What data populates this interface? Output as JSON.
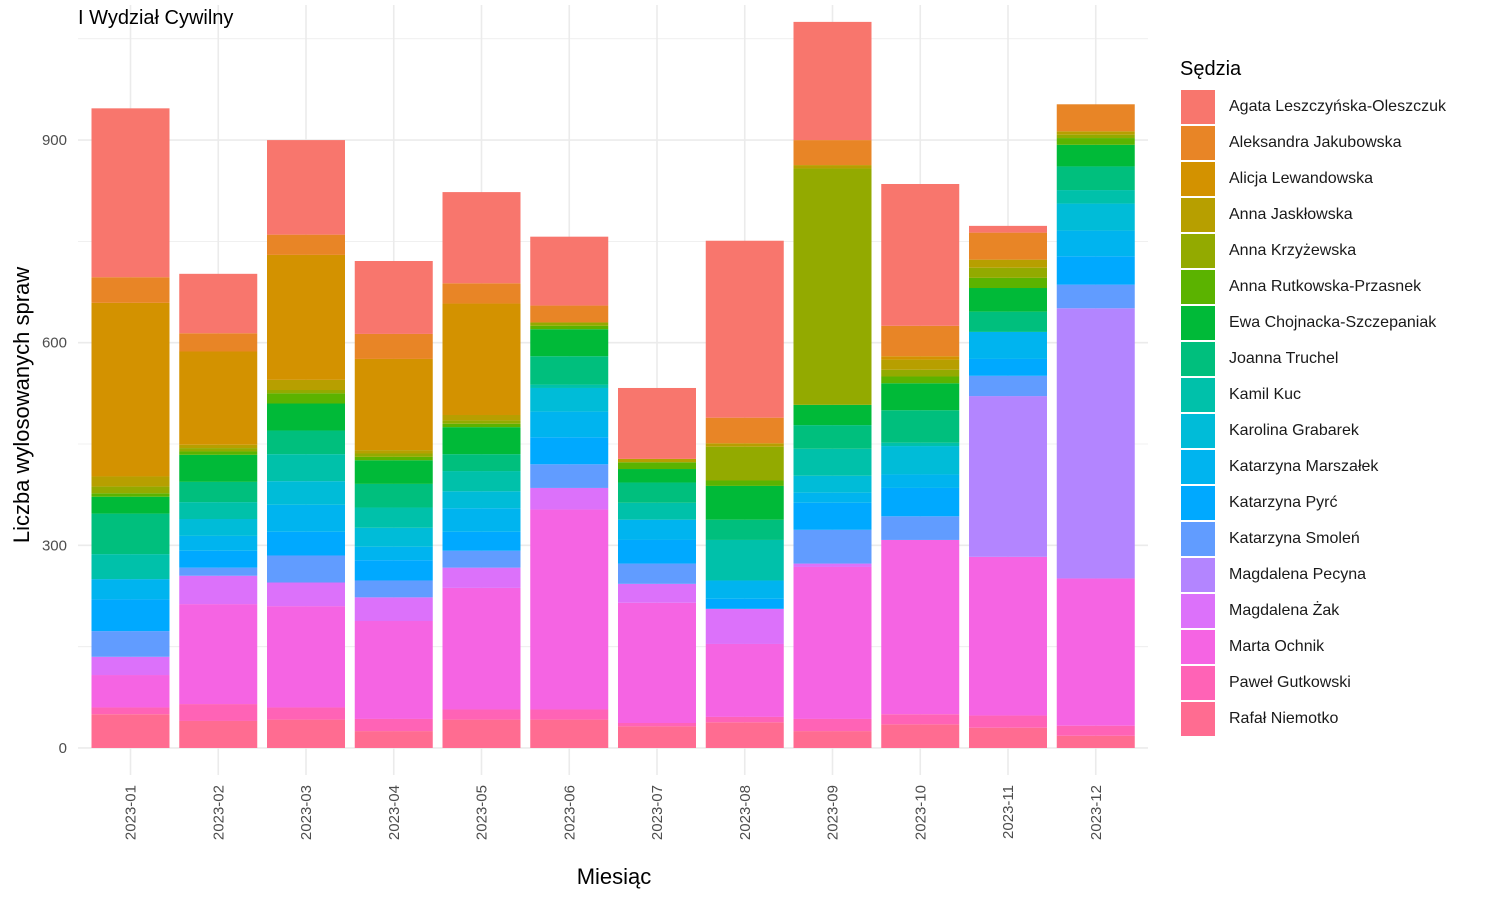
{
  "chart_data": {
    "type": "bar",
    "stacked": true,
    "title": "I Wydział Cywilny",
    "xlabel": "Miesiąc",
    "ylabel": "Liczba wylosowanych spraw",
    "legend_title": "Sędzia",
    "legend_position": "right",
    "grid": true,
    "ylim": [
      -40,
      1100
    ],
    "y_ticks": [
      0,
      300,
      600,
      900
    ],
    "categories": [
      "2023-01",
      "2023-02",
      "2023-03",
      "2023-04",
      "2023-05",
      "2023-06",
      "2023-07",
      "2023-08",
      "2023-09",
      "2023-10",
      "2023-11",
      "2023-12"
    ],
    "series": [
      {
        "name": "Rafał Niemotko",
        "color": "#FF6C91",
        "values": [
          50,
          40,
          42,
          25,
          42,
          42,
          32,
          38,
          25,
          35,
          30,
          18
        ]
      },
      {
        "name": "Paweł Gutkowski",
        "color": "#FF63B6",
        "values": [
          10,
          25,
          18,
          18,
          15,
          15,
          5,
          8,
          18,
          15,
          18,
          15
        ]
      },
      {
        "name": "Marta Ochnik",
        "color": "#F564E3",
        "values": [
          48,
          148,
          150,
          145,
          180,
          296,
          178,
          108,
          225,
          258,
          235,
          218
        ]
      },
      {
        "name": "Magdalena Żak",
        "color": "#DC71FA",
        "values": [
          27,
          42,
          35,
          35,
          30,
          32,
          28,
          52,
          5,
          0,
          0,
          0
        ]
      },
      {
        "name": "Magdalena Pecyna",
        "color": "#B385FF",
        "values": [
          0,
          0,
          0,
          0,
          0,
          0,
          0,
          0,
          0,
          0,
          238,
          400
        ]
      },
      {
        "name": "Katarzyna Smoleń",
        "color": "#619CFF",
        "values": [
          38,
          12,
          40,
          25,
          25,
          35,
          30,
          0,
          50,
          35,
          30,
          35
        ]
      },
      {
        "name": "Katarzyna Pyrć",
        "color": "#00A9FF",
        "values": [
          47,
          25,
          35,
          30,
          28,
          40,
          35,
          15,
          40,
          42,
          25,
          42
        ]
      },
      {
        "name": "Katarzyna Marszałek",
        "color": "#00B4EF",
        "values": [
          30,
          22,
          40,
          20,
          35,
          38,
          30,
          27,
          15,
          20,
          40,
          38
        ]
      },
      {
        "name": "Karolina Grabarek",
        "color": "#00BCD8",
        "values": [
          0,
          25,
          35,
          28,
          25,
          35,
          0,
          0,
          25,
          42,
          0,
          40
        ]
      },
      {
        "name": "Kamil Kuc",
        "color": "#00C1AA",
        "values": [
          37,
          25,
          40,
          30,
          30,
          5,
          25,
          60,
          40,
          5,
          0,
          20
        ]
      },
      {
        "name": "Joanna Truchel",
        "color": "#00BF7D",
        "values": [
          60,
          30,
          35,
          35,
          25,
          42,
          30,
          30,
          35,
          48,
          30,
          35
        ]
      },
      {
        "name": "Ewa Chojnacka-Szczepaniak",
        "color": "#00BA38",
        "values": [
          25,
          40,
          40,
          35,
          40,
          40,
          20,
          50,
          30,
          40,
          35,
          32
        ]
      },
      {
        "name": "Anna Rutkowska-Przasnek",
        "color": "#5BB300",
        "values": [
          5,
          5,
          15,
          5,
          5,
          5,
          10,
          8,
          0,
          10,
          15,
          10
        ]
      },
      {
        "name": "Anna Krzyżewska",
        "color": "#93AA00",
        "values": [
          10,
          5,
          5,
          5,
          5,
          5,
          0,
          50,
          350,
          10,
          15,
          5
        ]
      },
      {
        "name": "Anna Jaskłowska",
        "color": "#B79F00",
        "values": [
          15,
          5,
          15,
          5,
          8,
          0,
          5,
          5,
          5,
          15,
          12,
          5
        ]
      },
      {
        "name": "Alicja Lewandowska",
        "color": "#D39200",
        "values": [
          257,
          138,
          185,
          135,
          165,
          0,
          0,
          0,
          0,
          5,
          0,
          0
        ]
      },
      {
        "name": "Aleksandra Jakubowska",
        "color": "#E88526",
        "values": [
          38,
          27,
          30,
          37,
          30,
          25,
          0,
          38,
          37,
          45,
          40,
          40
        ]
      },
      {
        "name": "Agata Leszczyńska-Oleszczuk",
        "color": "#F8766D",
        "values": [
          250,
          88,
          140,
          108,
          135,
          102,
          105,
          262,
          175,
          210,
          10,
          0
        ]
      }
    ]
  }
}
